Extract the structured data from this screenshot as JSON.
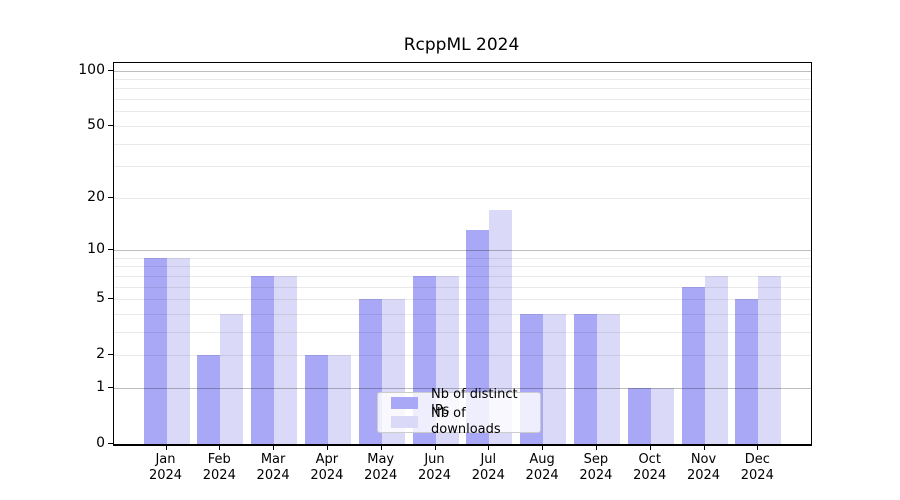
{
  "figure": {
    "background": "#ffffff"
  },
  "chart_data": {
    "type": "bar",
    "title": "RcppML 2024",
    "categories": [
      "Jan",
      "Feb",
      "Mar",
      "Apr",
      "May",
      "Jun",
      "Jul",
      "Aug",
      "Sep",
      "Oct",
      "Nov",
      "Dec"
    ],
    "x_sublabel": "2024",
    "series": [
      {
        "name": "Nb of distinct IPs",
        "color": "#a8a8f6",
        "values": [
          9,
          2,
          7,
          2,
          5,
          7,
          13,
          4,
          4,
          1,
          6,
          5
        ]
      },
      {
        "name": "Nb of downloads",
        "color": "#dadaf8",
        "values": [
          9,
          4,
          7,
          2,
          5,
          7,
          17,
          4,
          4,
          1,
          7,
          7
        ]
      }
    ],
    "yscale": "log10(value+1)",
    "yticks": [
      100,
      50,
      20,
      10,
      5,
      2,
      1,
      0
    ],
    "ylim": [
      0,
      110
    ],
    "grid": {
      "on": true,
      "major_lines": [
        1,
        10,
        100
      ],
      "minor_lines": [
        2,
        3,
        4,
        5,
        6,
        7,
        8,
        9,
        20,
        30,
        40,
        50,
        60,
        70,
        80,
        90
      ],
      "major_color": "#bdbdbd",
      "minor_color": "#eaeaea"
    },
    "legend": {
      "position": "lower center"
    },
    "axis_color": "#000000",
    "text_color": "#000000"
  }
}
